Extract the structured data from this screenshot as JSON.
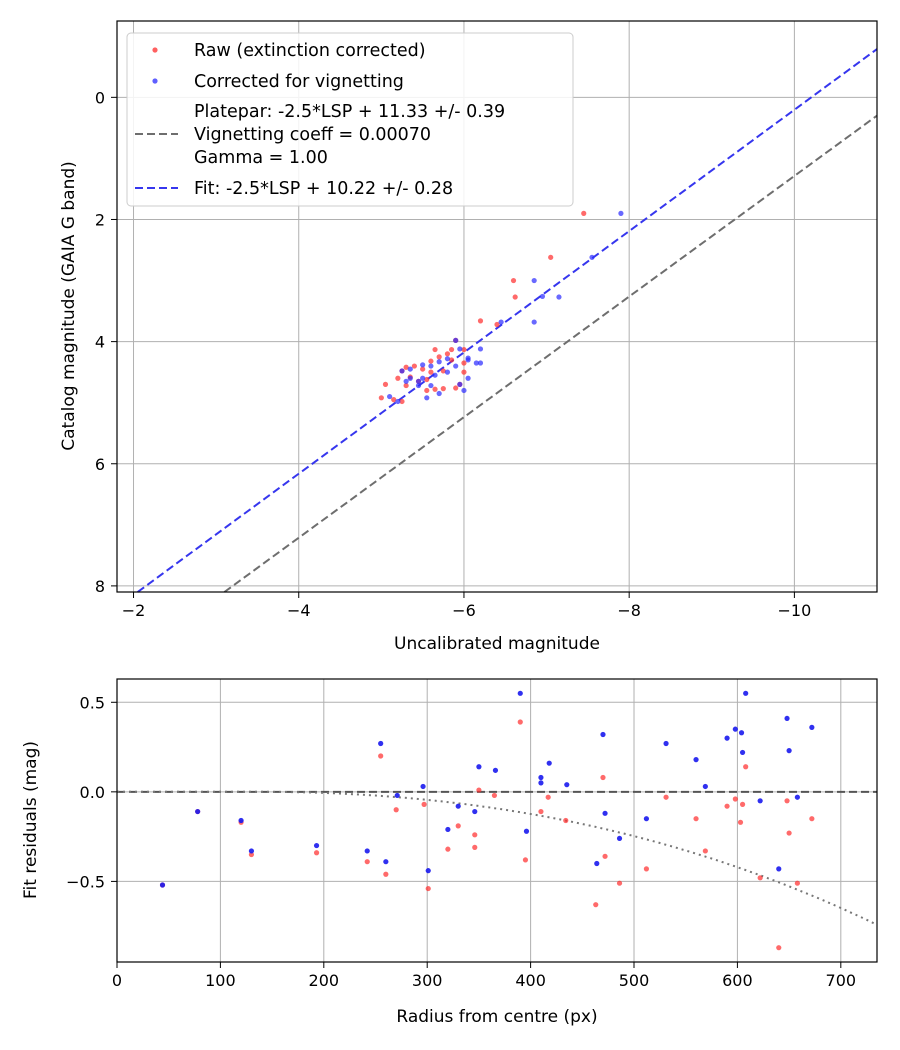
{
  "chart_data": [
    {
      "type": "scatter",
      "xlabel": "Uncalibrated magnitude",
      "ylabel": "Catalog magnitude (GAIA G band)",
      "xlim": [
        -1.8,
        -11.0
      ],
      "ylim": [
        8.1,
        -1.25
      ],
      "xticks": [
        -2,
        -4,
        -6,
        -8,
        -10
      ],
      "xtick_labels": [
        "−2",
        "−4",
        "−6",
        "−8",
        "−10"
      ],
      "yticks": [
        0,
        2,
        4,
        6,
        8
      ],
      "ytick_labels": [
        "0",
        "2",
        "4",
        "6",
        "8"
      ],
      "grid": true,
      "legend_position": "top-left",
      "legend": {
        "raw": "Raw (extinction corrected)",
        "corrected": "Corrected for vignetting",
        "platepar_lines": [
          "Platepar: -2.5*LSP + 11.33 +/- 0.39",
          "Vignetting coeff = 0.00070",
          "Gamma = 1.00"
        ],
        "fit": "Fit: -2.5*LSP + 10.22 +/- 0.28"
      },
      "colors": {
        "raw": "#ff2b2b",
        "corrected": "#2a2aff",
        "platepar": "#6e6e6e",
        "fit": "#3636ee"
      },
      "lines": [
        {
          "name": "Platepar",
          "x": [
            -3.1,
            -11.0
          ],
          "y": [
            8.1,
            0.3
          ],
          "style": "dashed"
        },
        {
          "name": "Fit",
          "x": [
            -2.05,
            -11.0
          ],
          "y": [
            8.1,
            -0.79
          ],
          "style": "dashed"
        }
      ],
      "series": [
        {
          "name": "Raw (extinction corrected)",
          "points": [
            [
              -7.45,
              1.9
            ],
            [
              -7.05,
              2.62
            ],
            [
              -6.6,
              3.0
            ],
            [
              -6.62,
              3.27
            ],
            [
              -6.4,
              3.72
            ],
            [
              -6.2,
              3.66
            ],
            [
              -5.9,
              3.98
            ],
            [
              -5.85,
              4.13
            ],
            [
              -5.65,
              4.13
            ],
            [
              -6.0,
              4.13
            ],
            [
              -5.8,
              4.2
            ],
            [
              -5.85,
              4.3
            ],
            [
              -5.7,
              4.25
            ],
            [
              -6.0,
              4.35
            ],
            [
              -5.6,
              4.32
            ],
            [
              -5.4,
              4.4
            ],
            [
              -5.3,
              4.42
            ],
            [
              -5.5,
              4.45
            ],
            [
              -5.75,
              4.48
            ],
            [
              -5.6,
              4.5
            ],
            [
              -5.25,
              4.48
            ],
            [
              -5.35,
              4.58
            ],
            [
              -5.55,
              4.62
            ],
            [
              -5.45,
              4.65
            ],
            [
              -5.2,
              4.6
            ],
            [
              -5.3,
              4.72
            ],
            [
              -5.05,
              4.7
            ],
            [
              -5.65,
              4.78
            ],
            [
              -5.75,
              4.77
            ],
            [
              -5.9,
              4.76
            ],
            [
              -5.55,
              4.8
            ],
            [
              -5.0,
              4.92
            ],
            [
              -5.15,
              4.95
            ],
            [
              -5.25,
              4.98
            ],
            [
              -5.95,
              4.7
            ],
            [
              -6.0,
              4.5
            ]
          ]
        },
        {
          "name": "Corrected for vignetting",
          "points": [
            [
              -7.9,
              1.9
            ],
            [
              -7.55,
              2.62
            ],
            [
              -6.85,
              3.0
            ],
            [
              -7.15,
              3.27
            ],
            [
              -6.95,
              3.26
            ],
            [
              -6.85,
              3.68
            ],
            [
              -6.45,
              3.68
            ],
            [
              -6.2,
              4.12
            ],
            [
              -6.05,
              4.27
            ],
            [
              -5.9,
              3.98
            ],
            [
              -5.95,
              4.12
            ],
            [
              -6.05,
              4.3
            ],
            [
              -6.2,
              4.35
            ],
            [
              -5.9,
              4.4
            ],
            [
              -5.7,
              4.33
            ],
            [
              -5.5,
              4.38
            ],
            [
              -5.6,
              4.4
            ],
            [
              -5.35,
              4.45
            ],
            [
              -5.25,
              4.48
            ],
            [
              -5.65,
              4.55
            ],
            [
              -5.8,
              4.5
            ],
            [
              -6.05,
              4.6
            ],
            [
              -5.5,
              4.6
            ],
            [
              -5.35,
              4.6
            ],
            [
              -5.45,
              4.65
            ],
            [
              -5.3,
              4.65
            ],
            [
              -5.45,
              4.72
            ],
            [
              -5.6,
              4.72
            ],
            [
              -5.95,
              4.7
            ],
            [
              -6.0,
              4.8
            ],
            [
              -5.7,
              4.85
            ],
            [
              -5.55,
              4.92
            ],
            [
              -5.1,
              4.9
            ],
            [
              -5.2,
              4.98
            ],
            [
              -6.15,
              4.35
            ],
            [
              -5.8,
              4.28
            ]
          ]
        }
      ]
    },
    {
      "type": "scatter",
      "xlabel": "Radius from centre (px)",
      "ylabel": "Fit residuals (mag)",
      "xlim": [
        0,
        735
      ],
      "ylim": [
        -0.95,
        0.63
      ],
      "xticks": [
        0,
        100,
        200,
        300,
        400,
        500,
        600,
        700
      ],
      "xtick_labels": [
        "0",
        "100",
        "200",
        "300",
        "400",
        "500",
        "600",
        "700"
      ],
      "yticks": [
        0.5,
        0.0,
        -0.5
      ],
      "ytick_labels": [
        "0.5",
        "0.0",
        "−0.5"
      ],
      "grid": true,
      "colors": {
        "raw": "#ff2b2b",
        "corrected": "#1a1aee",
        "zero_line": "#555555",
        "curve": "#777777"
      },
      "reference": {
        "name": "zero",
        "y": 0.0,
        "style": "dashed"
      },
      "vignetting_curve": {
        "coeff": 0.0007,
        "r0": 140,
        "scale": 1.62e-06,
        "style": "dotted"
      },
      "series": [
        {
          "name": "Raw (extinction corrected)",
          "points": [
            [
              44,
              -0.52
            ],
            [
              78,
              -0.11
            ],
            [
              120,
              -0.17
            ],
            [
              130,
              -0.35
            ],
            [
              193,
              -0.34
            ],
            [
              242,
              -0.39
            ],
            [
              255,
              0.2
            ],
            [
              260,
              -0.46
            ],
            [
              270,
              -0.1
            ],
            [
              297,
              -0.07
            ],
            [
              301,
              -0.54
            ],
            [
              320,
              -0.32
            ],
            [
              330,
              -0.19
            ],
            [
              346,
              -0.24
            ],
            [
              346,
              -0.31
            ],
            [
              350,
              0.01
            ],
            [
              365,
              -0.02
            ],
            [
              390,
              0.39
            ],
            [
              395,
              -0.38
            ],
            [
              410,
              -0.11
            ],
            [
              417,
              -0.03
            ],
            [
              434,
              -0.16
            ],
            [
              463,
              -0.63
            ],
            [
              470,
              0.08
            ],
            [
              472,
              -0.36
            ],
            [
              486,
              -0.51
            ],
            [
              512,
              -0.43
            ],
            [
              531,
              -0.03
            ],
            [
              560,
              -0.15
            ],
            [
              569,
              -0.33
            ],
            [
              590,
              -0.08
            ],
            [
              598,
              -0.04
            ],
            [
              603,
              -0.17
            ],
            [
              605,
              -0.07
            ],
            [
              608,
              0.14
            ],
            [
              622,
              -0.48
            ],
            [
              640,
              -0.87
            ],
            [
              648,
              -0.05
            ],
            [
              650,
              -0.23
            ],
            [
              658,
              -0.51
            ],
            [
              672,
              -0.15
            ]
          ]
        },
        {
          "name": "Corrected for vignetting",
          "points": [
            [
              44,
              -0.52
            ],
            [
              78,
              -0.11
            ],
            [
              120,
              -0.16
            ],
            [
              130,
              -0.33
            ],
            [
              193,
              -0.3
            ],
            [
              242,
              -0.33
            ],
            [
              255,
              0.27
            ],
            [
              260,
              -0.39
            ],
            [
              271,
              -0.02
            ],
            [
              296,
              0.03
            ],
            [
              301,
              -0.44
            ],
            [
              320,
              -0.21
            ],
            [
              330,
              -0.08
            ],
            [
              346,
              -0.11
            ],
            [
              350,
              0.14
            ],
            [
              366,
              0.12
            ],
            [
              390,
              0.55
            ],
            [
              396,
              -0.22
            ],
            [
              410,
              0.08
            ],
            [
              410,
              0.05
            ],
            [
              418,
              0.16
            ],
            [
              435,
              0.04
            ],
            [
              464,
              -0.4
            ],
            [
              470,
              0.32
            ],
            [
              472,
              -0.12
            ],
            [
              486,
              -0.26
            ],
            [
              512,
              -0.15
            ],
            [
              531,
              0.27
            ],
            [
              560,
              0.18
            ],
            [
              569,
              0.03
            ],
            [
              590,
              0.3
            ],
            [
              598,
              0.35
            ],
            [
              604,
              0.33
            ],
            [
              605,
              0.22
            ],
            [
              608,
              0.55
            ],
            [
              622,
              -0.05
            ],
            [
              640,
              -0.43
            ],
            [
              648,
              0.41
            ],
            [
              650,
              0.23
            ],
            [
              658,
              -0.03
            ],
            [
              672,
              0.36
            ]
          ]
        }
      ]
    }
  ]
}
